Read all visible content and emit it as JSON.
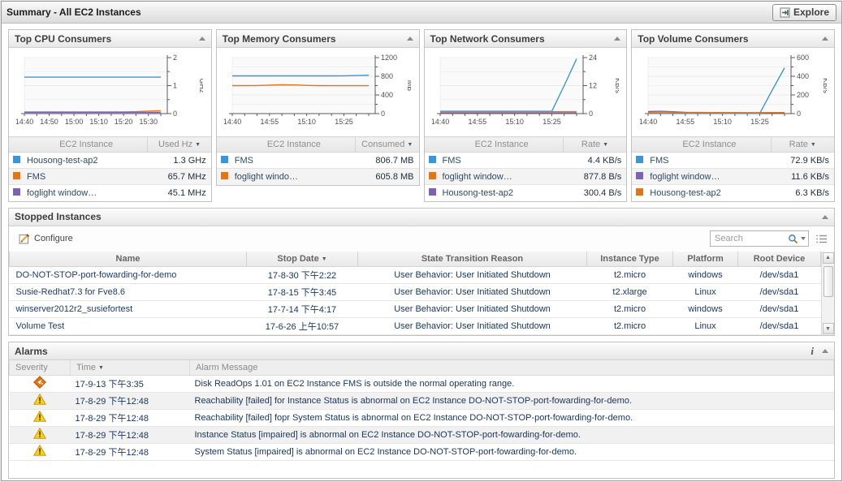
{
  "titlebar": {
    "title": "Summary - All EC2 Instances",
    "explore_label": "Explore"
  },
  "colors": {
    "series_blue": "#3e95d6",
    "series_orange": "#e1751c",
    "series_purple": "#7f62ad",
    "critical": "#e8720c",
    "warning": "#fdd017",
    "link_text": "#1f3d6d"
  },
  "top_panels": [
    {
      "title": "Top CPU Consumers",
      "table": {
        "col_item": "EC2 Instance",
        "col_value": "Used Hz",
        "rows": [
          {
            "color": "#3e95d6",
            "name": "Housong-test-ap2",
            "value": "1.3 GHz"
          },
          {
            "color": "#e1751c",
            "name": "FMS",
            "value": "65.7 MHz"
          },
          {
            "color": "#7f62ad",
            "name": "foglight window…",
            "value": "45.1 MHz"
          }
        ]
      }
    },
    {
      "title": "Top Memory Consumers",
      "table": {
        "col_item": "EC2 Instance",
        "col_value": "Consumed",
        "rows": [
          {
            "color": "#3e95d6",
            "name": "FMS",
            "value": "806.7 MB"
          },
          {
            "color": "#e1751c",
            "name": "foglight windo…",
            "value": "605.8 MB"
          }
        ]
      }
    },
    {
      "title": "Top Network Consumers",
      "table": {
        "col_item": "EC2 Instance",
        "col_value": "Rate",
        "rows": [
          {
            "color": "#3e95d6",
            "name": "FMS",
            "value": "4.4 KB/s"
          },
          {
            "color": "#e1751c",
            "name": "foglight window…",
            "value": "877.8 B/s"
          },
          {
            "color": "#7f62ad",
            "name": "Housong-test-ap2",
            "value": "300.4 B/s"
          }
        ]
      }
    },
    {
      "title": "Top Volume Consumers",
      "table": {
        "col_item": "EC2 Instance",
        "col_value": "Rate",
        "rows": [
          {
            "color": "#3e95d6",
            "name": "FMS",
            "value": "72.9 KB/s"
          },
          {
            "color": "#7f62ad",
            "name": "foglight window…",
            "value": "11.6 KB/s"
          },
          {
            "color": "#e1751c",
            "name": "Housong-test-ap2",
            "value": "6.3 KB/s"
          }
        ]
      }
    }
  ],
  "chart_data": [
    {
      "type": "line",
      "title": "Top CPU Consumers",
      "ylabel": "GHz",
      "ylim": [
        0,
        2
      ],
      "y_ticks": [
        0,
        1,
        2
      ],
      "x_units": 11,
      "x_tick_labels": [
        "14:40",
        "14:50",
        "15:00",
        "15:10",
        "15:20",
        "15:30"
      ],
      "x_label_positions": [
        0,
        2,
        4,
        6,
        8,
        10
      ],
      "legend_position": "table-below",
      "grid": true,
      "series": [
        {
          "name": "Housong-test-ap2",
          "color": "#3e95d6",
          "values": [
            1.3,
            1.3,
            1.3,
            1.3,
            1.3,
            1.3,
            1.3,
            1.3,
            1.3,
            1.3,
            1.3,
            1.3
          ]
        },
        {
          "name": "FMS",
          "color": "#e1751c",
          "values": [
            0.06,
            0.06,
            0.06,
            0.06,
            0.06,
            0.06,
            0.06,
            0.06,
            0.06,
            0.07,
            0.09,
            0.1
          ]
        },
        {
          "name": "foglight window…",
          "color": "#7f62ad",
          "values": [
            0.04,
            0.04,
            0.04,
            0.04,
            0.04,
            0.04,
            0.04,
            0.04,
            0.04,
            0.04,
            0.04,
            0.04
          ]
        }
      ]
    },
    {
      "type": "line",
      "title": "Top Memory Consumers",
      "ylabel": "MB",
      "ylim": [
        0,
        1200
      ],
      "y_ticks": [
        0,
        400,
        800,
        1200
      ],
      "x_units": 11,
      "x_tick_labels": [
        "14:40",
        "14:55",
        "15:10",
        "15:25"
      ],
      "x_label_positions": [
        0,
        3,
        6,
        9
      ],
      "legend_position": "table-below",
      "grid": true,
      "series": [
        {
          "name": "FMS",
          "color": "#3e95d6",
          "values": [
            808,
            808,
            808,
            808,
            808,
            808,
            808,
            808,
            808,
            810,
            816,
            822
          ]
        },
        {
          "name": "foglight windo…",
          "color": "#e1751c",
          "values": [
            600,
            600,
            602,
            610,
            617,
            614,
            606,
            600,
            598,
            598,
            598,
            598
          ]
        }
      ]
    },
    {
      "type": "line",
      "title": "Top Network Consumers",
      "ylabel": "KB/s",
      "ylim": [
        0,
        24
      ],
      "y_ticks": [
        0,
        12,
        24
      ],
      "x_units": 11,
      "x_tick_labels": [
        "14:40",
        "14:55",
        "15:10",
        "15:25"
      ],
      "x_label_positions": [
        0,
        3,
        6,
        9
      ],
      "legend_position": "table-below",
      "grid": true,
      "series": [
        {
          "name": "FMS",
          "color": "#3e95d6",
          "values": [
            1,
            1,
            1,
            1,
            1,
            1,
            1,
            1,
            1,
            1,
            12,
            23.5
          ]
        },
        {
          "name": "foglight window…",
          "color": "#e1751c",
          "values": [
            0.85,
            0.85,
            0.85,
            0.85,
            0.85,
            0.85,
            0.85,
            0.85,
            0.85,
            0.85,
            0.85,
            0.85
          ]
        },
        {
          "name": "Housong-test-ap2",
          "color": "#7f62ad",
          "values": [
            0.3,
            0.3,
            0.3,
            0.3,
            0.3,
            0.3,
            0.3,
            0.3,
            0.3,
            0.3,
            0.3,
            0.3
          ]
        }
      ]
    },
    {
      "type": "line",
      "title": "Top Volume Consumers",
      "ylabel": "KB/s",
      "ylim": [
        0,
        600
      ],
      "y_ticks": [
        0,
        200,
        400,
        600
      ],
      "x_units": 11,
      "x_tick_labels": [
        "14:40",
        "14:55",
        "15:10",
        "15:25"
      ],
      "x_label_positions": [
        0,
        3,
        6,
        9
      ],
      "legend_position": "table-below",
      "grid": true,
      "series": [
        {
          "name": "FMS",
          "color": "#3e95d6",
          "values": [
            3,
            3,
            3,
            3,
            3,
            3,
            3,
            3,
            3,
            3,
            250,
            490
          ]
        },
        {
          "name": "foglight window…",
          "color": "#7f62ad",
          "values": [
            22,
            25,
            20,
            14,
            12,
            11,
            10,
            10,
            9,
            9,
            10,
            10
          ]
        },
        {
          "name": "Housong-test-ap2",
          "color": "#e1751c",
          "values": [
            10,
            10,
            9,
            9,
            10,
            10,
            10,
            9,
            9,
            9,
            10,
            10
          ]
        }
      ]
    }
  ],
  "stopped": {
    "title": "Stopped Instances",
    "configure_label": "Configure",
    "search_placeholder": "Search",
    "sort_column": "Stop Date",
    "columns": [
      "Name",
      "Stop Date",
      "State Transition Reason",
      "Instance Type",
      "Platform",
      "Root Device"
    ],
    "rows": [
      [
        "DO-NOT-STOP-port-fowarding-for-demo",
        "17-8-30 下午2:22",
        "User Behavior: User Initiated Shutdown",
        "t2.micro",
        "windows",
        "/dev/sda1"
      ],
      [
        "Susie-Redhat7.3 for Fve8.6",
        "17-8-15 下午3:45",
        "User Behavior: User Initiated Shutdown",
        "t2.xlarge",
        "Linux",
        "/dev/sda1"
      ],
      [
        "winserver2012r2_susiefortest",
        "17-7-14 下午4:17",
        "User Behavior: User Initiated Shutdown",
        "t2.micro",
        "windows",
        "/dev/sda1"
      ],
      [
        "Volume Test",
        "17-6-26 上午10:57",
        "User Behavior: User Initiated Shutdown",
        "t2.micro",
        "Linux",
        "/dev/sda1"
      ]
    ]
  },
  "alarms": {
    "title": "Alarms",
    "columns": [
      "Severity",
      "Time",
      "Alarm Message"
    ],
    "sort_column": "Time",
    "rows": [
      {
        "severity": "critical",
        "time": "17-9-13 下午3:35",
        "message": "Disk ReadOps 1.01 on EC2 Instance FMS is outside the normal operating range."
      },
      {
        "severity": "warning",
        "time": "17-8-29 下午12:48",
        "message": "Reachability [failed] for Instance Status is abnormal on EC2 Instance DO-NOT-STOP-port-fowarding-for-demo."
      },
      {
        "severity": "warning",
        "time": "17-8-29 下午12:48",
        "message": "Reachability [failed] fopr System Status is abnormal on EC2 Instance DO-NOT-STOP-port-fowarding-for-demo."
      },
      {
        "severity": "warning",
        "time": "17-8-29 下午12:48",
        "message": "Instance Status [impaired] is abnormal on EC2 Instance DO-NOT-STOP-port-fowarding-for-demo."
      },
      {
        "severity": "warning",
        "time": "17-8-29 下午12:48",
        "message": "System Status [impaired] is abnormal on EC2 Instance DO-NOT-STOP-port-fowarding-for-demo."
      }
    ]
  }
}
